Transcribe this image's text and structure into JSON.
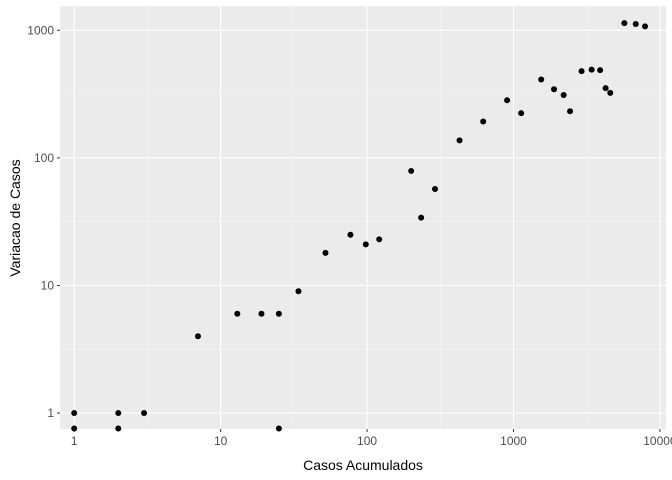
{
  "chart_data": {
    "type": "scatter",
    "title": "",
    "xlabel": "Casos Acumulados",
    "ylabel": "Variacao de Casos",
    "xscale": "log10",
    "yscale": "log10",
    "xlim": [
      0.8,
      11000
    ],
    "ylim": [
      0.75,
      1550
    ],
    "x_ticks": [
      1,
      10,
      100,
      1000,
      10000
    ],
    "x_tick_labels": [
      "1",
      "10",
      "100",
      "1000",
      "10000"
    ],
    "y_ticks": [
      1,
      10,
      100,
      1000
    ],
    "y_tick_labels": [
      "1",
      "10",
      "100",
      "1000"
    ],
    "grid": true,
    "colors": {
      "panel": "#ebebeb",
      "grid_major": "#ffffff",
      "grid_minor": "#f5f5f5",
      "point": "#000000"
    },
    "points": [
      {
        "x": 1,
        "y": 1
      },
      {
        "x": 1,
        "y": 0.7
      },
      {
        "x": 2,
        "y": 1
      },
      {
        "x": 2,
        "y": 0.7
      },
      {
        "x": 3,
        "y": 1
      },
      {
        "x": 7,
        "y": 4
      },
      {
        "x": 13,
        "y": 6
      },
      {
        "x": 19,
        "y": 6
      },
      {
        "x": 25,
        "y": 6
      },
      {
        "x": 25,
        "y": 0.7
      },
      {
        "x": 34,
        "y": 9
      },
      {
        "x": 52,
        "y": 18
      },
      {
        "x": 77,
        "y": 25
      },
      {
        "x": 98,
        "y": 21
      },
      {
        "x": 121,
        "y": 23
      },
      {
        "x": 200,
        "y": 79
      },
      {
        "x": 234,
        "y": 34
      },
      {
        "x": 291,
        "y": 57
      },
      {
        "x": 428,
        "y": 137
      },
      {
        "x": 621,
        "y": 193
      },
      {
        "x": 904,
        "y": 283
      },
      {
        "x": 1128,
        "y": 224
      },
      {
        "x": 1546,
        "y": 411
      },
      {
        "x": 1891,
        "y": 345
      },
      {
        "x": 2201,
        "y": 311
      },
      {
        "x": 2433,
        "y": 232
      },
      {
        "x": 2915,
        "y": 478
      },
      {
        "x": 3417,
        "y": 492
      },
      {
        "x": 3904,
        "y": 487
      },
      {
        "x": 4256,
        "y": 352
      },
      {
        "x": 4579,
        "y": 323
      },
      {
        "x": 5717,
        "y": 1138
      },
      {
        "x": 6836,
        "y": 1119
      },
      {
        "x": 7910,
        "y": 1074
      }
    ]
  }
}
